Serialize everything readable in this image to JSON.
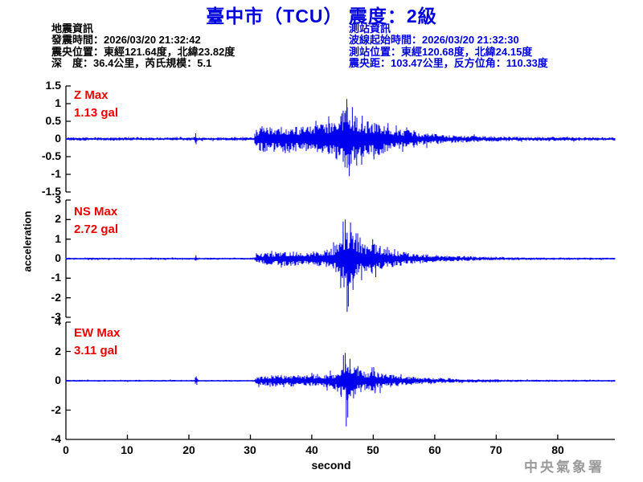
{
  "title": "臺中市（TCU） 震度：2級",
  "earthquake_info": {
    "heading": "地震資訊",
    "origin_time_line": "發震時間：2026/03/20 21:32:42",
    "epicenter_line": "震央位置：東經121.64度，北緯23.82度",
    "depth_magnitude_line": "深　度：36.4公里，芮氏規模：5.1"
  },
  "station_info": {
    "heading": "測站資訊",
    "wave_start_line": "波線起始時間：2026/03/20 21:32:30",
    "station_location_line": "測站位置：東經120.68度，北緯24.15度",
    "distance_azimuth_line": "震央距：103.47公里，反方位角：110.33度"
  },
  "watermark": "中央氣象署",
  "colors": {
    "title_blue": "#0000dd",
    "trace_blue": "#0000ef",
    "label_red": "#ee0000",
    "axis_black": "#000000",
    "watermark_gray": "#9a9a9a"
  },
  "chart_data": {
    "type": "line",
    "subtype": "seismogram-3-channel",
    "xlabel": "second",
    "ylabel": "acceleration",
    "x_ticks": [
      0,
      10,
      20,
      30,
      40,
      50,
      60,
      70,
      80
    ],
    "x_max": 89.3,
    "units": "gal",
    "channels": [
      {
        "name": "Z",
        "label": "Z Max",
        "max_label": "1.13 gal",
        "max_gal": 1.13,
        "ylim": [
          -1.5,
          1.5
        ],
        "yticks": [
          1.5,
          1,
          0.5,
          0,
          -0.5,
          -1,
          -1.5
        ],
        "envelope": [
          [
            0,
            0.045
          ],
          [
            20.7,
            0.045
          ],
          [
            21.0,
            0.14
          ],
          [
            21.5,
            0.045
          ],
          [
            30.6,
            0.045
          ],
          [
            31.0,
            0.3
          ],
          [
            32,
            0.38
          ],
          [
            34,
            0.33
          ],
          [
            36,
            0.4
          ],
          [
            38,
            0.34
          ],
          [
            40,
            0.38
          ],
          [
            42,
            0.42
          ],
          [
            43.5,
            0.5
          ],
          [
            44.5,
            0.65
          ],
          [
            45.3,
            0.85
          ],
          [
            45.8,
            0.95
          ],
          [
            46.5,
            0.75
          ],
          [
            47.5,
            0.6
          ],
          [
            48.5,
            0.52
          ],
          [
            50,
            0.5
          ],
          [
            51.5,
            0.42
          ],
          [
            53,
            0.34
          ],
          [
            55,
            0.26
          ],
          [
            57,
            0.2
          ],
          [
            60,
            0.15
          ],
          [
            63,
            0.11
          ],
          [
            67,
            0.085
          ],
          [
            72,
            0.065
          ],
          [
            78,
            0.055
          ],
          [
            89.3,
            0.05
          ]
        ],
        "spikes": [
          [
            21.1,
            0.16
          ],
          [
            21.18,
            -0.15
          ],
          [
            44.9,
            0.72
          ],
          [
            45.4,
            -0.8
          ],
          [
            45.7,
            1.13
          ],
          [
            46.1,
            -1.05
          ],
          [
            46.6,
            0.9
          ],
          [
            47.3,
            -0.75
          ],
          [
            48.2,
            0.66
          ],
          [
            50.1,
            -0.58
          ],
          [
            52.4,
            0.45
          ]
        ]
      },
      {
        "name": "NS",
        "label": "NS Max",
        "max_label": "2.72 gal",
        "max_gal": 2.72,
        "ylim": [
          -3,
          3
        ],
        "yticks": [
          3,
          2,
          1,
          0,
          -1,
          -2,
          -3
        ],
        "envelope": [
          [
            0,
            0.05
          ],
          [
            20.8,
            0.05
          ],
          [
            21.1,
            0.13
          ],
          [
            21.5,
            0.05
          ],
          [
            30.6,
            0.05
          ],
          [
            31.0,
            0.22
          ],
          [
            32.5,
            0.3
          ],
          [
            34.5,
            0.34
          ],
          [
            36.5,
            0.42
          ],
          [
            38,
            0.34
          ],
          [
            40,
            0.38
          ],
          [
            42,
            0.42
          ],
          [
            43.5,
            0.55
          ],
          [
            44.5,
            0.95
          ],
          [
            45.2,
            1.45
          ],
          [
            45.7,
            1.65
          ],
          [
            46.3,
            1.35
          ],
          [
            47,
            1.05
          ],
          [
            48,
            0.8
          ],
          [
            49,
            0.72
          ],
          [
            49.8,
            0.85
          ],
          [
            50.6,
            0.68
          ],
          [
            52,
            0.5
          ],
          [
            54,
            0.38
          ],
          [
            56,
            0.3
          ],
          [
            58,
            0.24
          ],
          [
            60,
            0.19
          ],
          [
            63,
            0.14
          ],
          [
            67,
            0.1
          ],
          [
            72,
            0.075
          ],
          [
            78,
            0.06
          ],
          [
            89.3,
            0.055
          ]
        ],
        "spikes": [
          [
            21.15,
            0.18
          ],
          [
            44.7,
            -1.5
          ],
          [
            45.1,
            1.9
          ],
          [
            45.45,
            2.0
          ],
          [
            45.75,
            -2.72
          ],
          [
            45.95,
            -2.45
          ],
          [
            46.3,
            1.85
          ],
          [
            46.7,
            -1.6
          ],
          [
            47.2,
            1.3
          ],
          [
            48.1,
            -1.1
          ],
          [
            49.9,
            1.0
          ],
          [
            50.4,
            -0.95
          ],
          [
            52.3,
            0.6
          ]
        ]
      },
      {
        "name": "EW",
        "label": "EW Max",
        "max_label": "3.11 gal",
        "max_gal": 3.11,
        "ylim": [
          -4,
          4
        ],
        "yticks": [
          4,
          2,
          0,
          -2,
          -4
        ],
        "envelope": [
          [
            0,
            0.06
          ],
          [
            20.8,
            0.06
          ],
          [
            21.1,
            0.26
          ],
          [
            21.6,
            0.06
          ],
          [
            30.6,
            0.055
          ],
          [
            31.0,
            0.28
          ],
          [
            32.5,
            0.34
          ],
          [
            34.5,
            0.42
          ],
          [
            36,
            0.38
          ],
          [
            38,
            0.42
          ],
          [
            40,
            0.38
          ],
          [
            42,
            0.42
          ],
          [
            43.5,
            0.52
          ],
          [
            44.5,
            0.85
          ],
          [
            45.2,
            1.3
          ],
          [
            45.7,
            1.4
          ],
          [
            46.3,
            1.15
          ],
          [
            47,
            0.95
          ],
          [
            48,
            0.78
          ],
          [
            49,
            0.68
          ],
          [
            49.7,
            0.8
          ],
          [
            50.6,
            0.62
          ],
          [
            52,
            0.48
          ],
          [
            54,
            0.38
          ],
          [
            56,
            0.3
          ],
          [
            58,
            0.24
          ],
          [
            60,
            0.19
          ],
          [
            63,
            0.145
          ],
          [
            67,
            0.11
          ],
          [
            72,
            0.085
          ],
          [
            78,
            0.07
          ],
          [
            89.3,
            0.065
          ]
        ],
        "spikes": [
          [
            21.2,
            0.3
          ],
          [
            21.3,
            -0.28
          ],
          [
            44.8,
            -1.1
          ],
          [
            45.15,
            1.75
          ],
          [
            45.45,
            1.9
          ],
          [
            45.6,
            -3.11
          ],
          [
            45.85,
            -2.5
          ],
          [
            46.2,
            1.5
          ],
          [
            46.8,
            -1.2
          ],
          [
            47.5,
            1.0
          ],
          [
            49.8,
            0.92
          ],
          [
            50.3,
            -0.85
          ]
        ]
      }
    ]
  }
}
